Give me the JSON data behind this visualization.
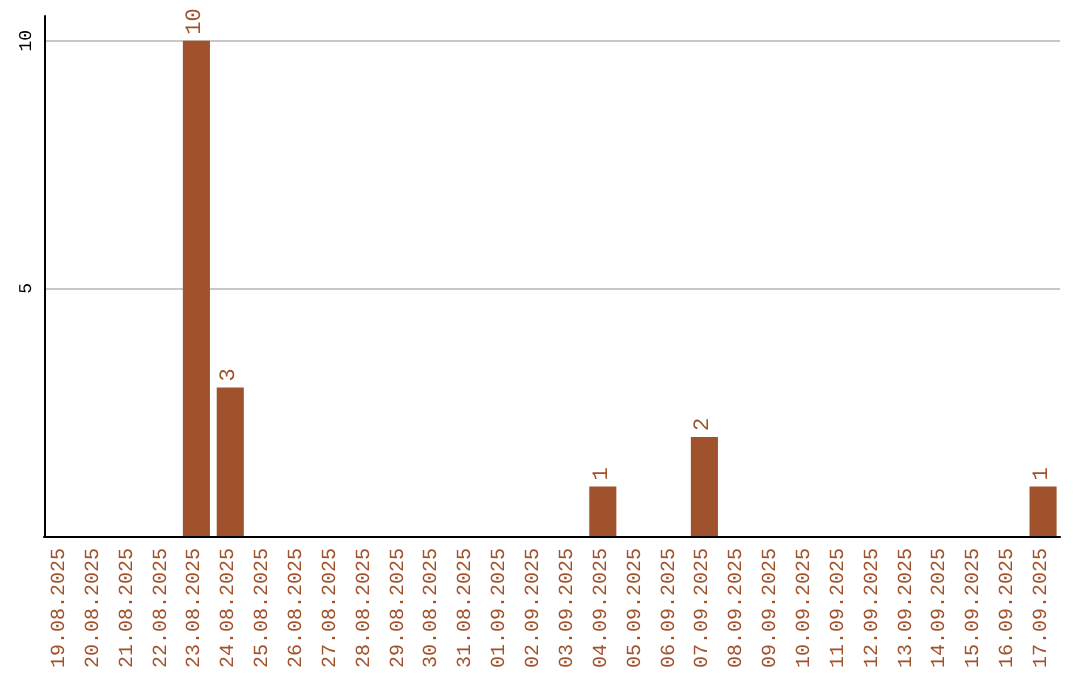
{
  "chart_data": {
    "type": "bar",
    "categories": [
      "19.08.2025",
      "20.08.2025",
      "21.08.2025",
      "22.08.2025",
      "23.08.2025",
      "24.08.2025",
      "25.08.2025",
      "26.08.2025",
      "27.08.2025",
      "28.08.2025",
      "29.08.2025",
      "30.08.2025",
      "31.08.2025",
      "01.09.2025",
      "02.09.2025",
      "03.09.2025",
      "04.09.2025",
      "05.09.2025",
      "06.09.2025",
      "07.09.2025",
      "08.09.2025",
      "09.09.2025",
      "10.09.2025",
      "11.09.2025",
      "12.09.2025",
      "13.09.2025",
      "14.09.2025",
      "15.09.2025",
      "16.09.2025",
      "17.09.2025"
    ],
    "values": [
      0,
      0,
      0,
      0,
      10,
      3,
      0,
      0,
      0,
      0,
      0,
      0,
      0,
      0,
      0,
      0,
      1,
      0,
      0,
      2,
      0,
      0,
      0,
      0,
      0,
      0,
      0,
      0,
      0,
      1
    ],
    "value_labels": [
      null,
      null,
      null,
      null,
      "10",
      "3",
      null,
      null,
      null,
      null,
      null,
      null,
      null,
      null,
      null,
      null,
      "1",
      null,
      null,
      "2",
      null,
      null,
      null,
      null,
      null,
      null,
      null,
      null,
      null,
      "1"
    ],
    "color": "#a0522d",
    "ylim": [
      0,
      10.5
    ],
    "yticks": [
      5,
      10
    ],
    "grid": "y"
  }
}
